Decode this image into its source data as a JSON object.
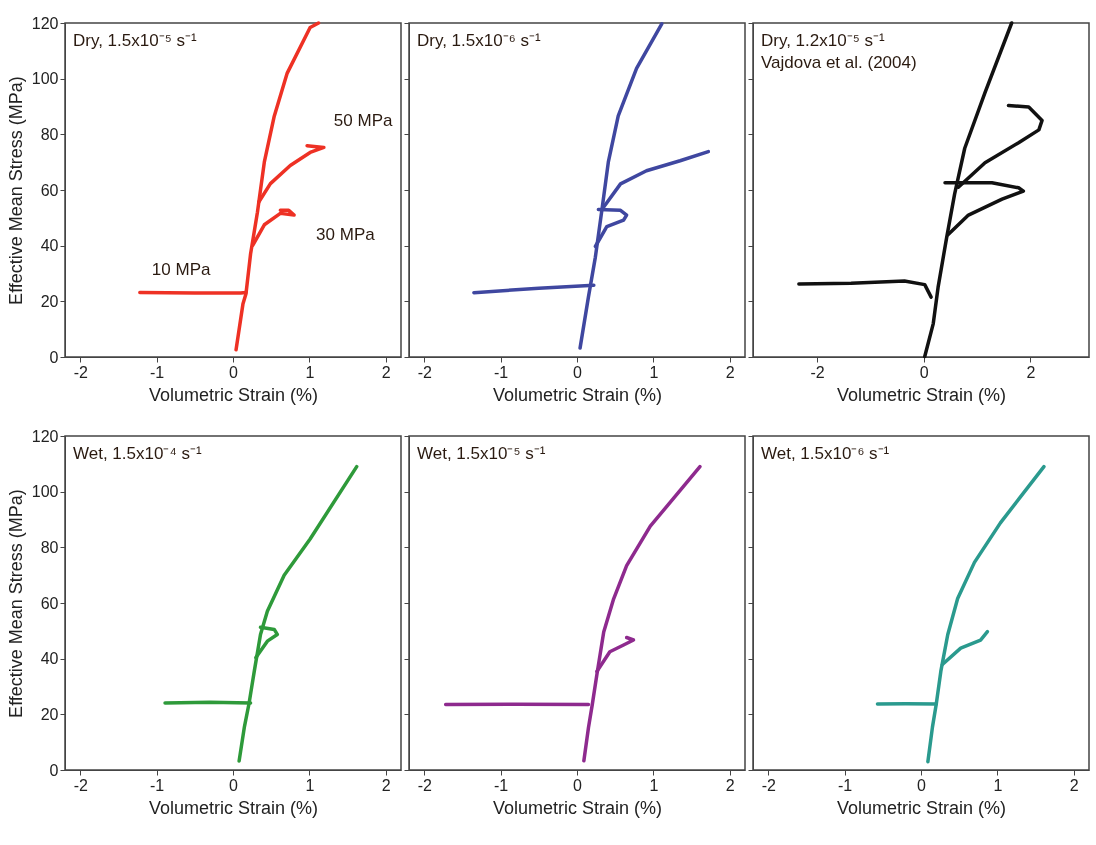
{
  "chart_data": [
    {
      "type": "line",
      "title": "Dry, 1.5x10⁻⁵ s⁻¹",
      "xlabel": "Volumetric Strain (%)",
      "ylabel": "Effective Mean Stress (MPa)",
      "xlim": [
        -2.2,
        2.2
      ],
      "ylim": [
        0,
        120
      ],
      "xticks": [
        -2,
        -1,
        0,
        1,
        2
      ],
      "yticks": [
        0,
        20,
        40,
        60,
        80,
        100,
        120
      ],
      "annotations": [
        {
          "text": "10 MPa",
          "x": -1.22,
          "y": 23.2
        },
        {
          "text": "30 MPa",
          "x": 0.8,
          "y": 51
        },
        {
          "text": "50 MPa",
          "x": 1.19,
          "y": 75.3
        }
      ],
      "series": [
        {
          "color": "#ee3124",
          "x": [
            0.04,
            0.13,
            0.17,
            0.23,
            0.32,
            0.41,
            0.54,
            0.71,
            1.01,
            1.12
          ],
          "values": [
            2.6,
            19,
            22.7,
            37,
            52,
            70,
            86.5,
            102,
            118.4,
            120
          ]
        },
        {
          "color": "#ee3124",
          "x": [
            0.17,
            0.1,
            -0.5,
            -1.22
          ],
          "values": [
            23.2,
            23,
            23,
            23.2
          ]
        },
        {
          "color": "#ee3124",
          "x": [
            0.26,
            0.41,
            0.62,
            0.8,
            0.73,
            0.62
          ],
          "values": [
            40.2,
            47.5,
            51.6,
            51,
            52.7,
            52.7
          ]
        },
        {
          "color": "#ee3124",
          "x": [
            0.34,
            0.49,
            0.75,
            1.01,
            1.19,
            0.97
          ],
          "values": [
            55.8,
            62.3,
            68.8,
            73.5,
            75.3,
            75.9
          ]
        }
      ]
    },
    {
      "type": "line",
      "title": "Dry, 1.5x10⁻⁶ s⁻¹",
      "xlabel": "Volumetric Strain (%)",
      "xlim": [
        -2.2,
        2.2
      ],
      "ylim": [
        0,
        120
      ],
      "xticks": [
        -2,
        -1,
        0,
        1,
        2
      ],
      "yticks": [
        0,
        20,
        40,
        60,
        80,
        100,
        120
      ],
      "tick_labels": "x",
      "series": [
        {
          "color": "#3f47a0",
          "x": [
            0.04,
            0.15,
            0.24,
            0.33,
            0.41,
            0.54,
            0.78,
            1.11
          ],
          "values": [
            3.2,
            21.6,
            35.8,
            53.6,
            70,
            86.6,
            103.7,
            119.7
          ]
        },
        {
          "color": "#3f47a0",
          "x": [
            0.22,
            -0.5,
            -1.35
          ],
          "values": [
            25.8,
            24.7,
            23.1
          ]
        },
        {
          "color": "#3f47a0",
          "x": [
            0.24,
            0.39,
            0.61,
            0.65,
            0.57,
            0.28
          ],
          "values": [
            39.7,
            46.8,
            49.2,
            51,
            52.7,
            53
          ]
        },
        {
          "color": "#3f47a0",
          "x": [
            0.35,
            0.57,
            0.91,
            1.35,
            1.72
          ],
          "values": [
            53.9,
            62.2,
            66.9,
            70.5,
            73.8
          ]
        }
      ]
    },
    {
      "type": "line",
      "title": "Dry, 1.2x10⁻⁵ s⁻¹",
      "subtitle": "Vajdova et al. (2004)",
      "xlabel": "Volumetric Strain (%)",
      "xlim": [
        -3.2,
        3.1
      ],
      "ylim": [
        0,
        120
      ],
      "xticks": [
        -2,
        0,
        2
      ],
      "yticks": [
        0,
        20,
        40,
        60,
        80,
        100,
        120
      ],
      "tick_labels": "x",
      "series": [
        {
          "color": "#111111",
          "x": [
            0.02,
            0.18,
            0.27,
            0.43,
            0.58,
            0.77,
            1.15,
            1.65
          ],
          "values": [
            0.2,
            12,
            25,
            42.8,
            58.5,
            75,
            95,
            120
          ]
        },
        {
          "color": "#111111",
          "x": [
            0.14,
            0.02,
            -0.36,
            -1.36,
            -2.34
          ],
          "values": [
            21.5,
            26,
            27.3,
            26.5,
            26.2
          ]
        },
        {
          "color": "#111111",
          "x": [
            0.46,
            0.84,
            1.47,
            1.87,
            1.78,
            1.28,
            0.84,
            0.4
          ],
          "values": [
            44,
            51,
            56.7,
            59.6,
            60.8,
            62.6,
            62.6,
            62.6
          ]
        },
        {
          "color": "#111111",
          "x": [
            0.65,
            1.15,
            1.78,
            2.16,
            2.22,
            1.97,
            1.59
          ],
          "values": [
            61,
            69.8,
            77,
            81.6,
            85,
            89.8,
            90.4
          ]
        }
      ]
    },
    {
      "type": "line",
      "title": "Wet, 1.5x10⁻⁴ s⁻¹",
      "xlabel": "Volumetric Strain (%)",
      "ylabel": "Effective Mean Stress (MPa)",
      "xlim": [
        -2.2,
        2.2
      ],
      "ylim": [
        0,
        120
      ],
      "xticks": [
        -2,
        -1,
        0,
        1,
        2
      ],
      "yticks": [
        0,
        20,
        40,
        60,
        80,
        100,
        120
      ],
      "series": [
        {
          "color": "#2e9a3a",
          "x": [
            0.08,
            0.15,
            0.21,
            0.28,
            0.36,
            0.45,
            0.67,
            1.01,
            1.62
          ],
          "values": [
            3.2,
            15.6,
            23.9,
            35.7,
            48.7,
            57,
            70,
            83,
            109
          ]
        },
        {
          "color": "#2e9a3a",
          "x": [
            0.23,
            -0.3,
            -0.89
          ],
          "values": [
            24.1,
            24.3,
            24.1
          ]
        },
        {
          "color": "#2e9a3a",
          "x": [
            0.3,
            0.45,
            0.58,
            0.54,
            0.36
          ],
          "values": [
            40.4,
            46.3,
            48.7,
            50.5,
            51.3
          ]
        }
      ]
    },
    {
      "type": "line",
      "title": "Wet, 1.5x10⁻⁵ s⁻¹",
      "xlabel": "Volumetric Strain (%)",
      "xlim": [
        -2.2,
        2.2
      ],
      "ylim": [
        0,
        120
      ],
      "xticks": [
        -2,
        -1,
        0,
        1,
        2
      ],
      "yticks": [
        0,
        20,
        40,
        60,
        80,
        100,
        120
      ],
      "tick_labels": "x",
      "series": [
        {
          "color": "#8e2a8e",
          "x": [
            0.09,
            0.15,
            0.2,
            0.26,
            0.35,
            0.48,
            0.65,
            0.96,
            1.61
          ],
          "values": [
            3.3,
            15.2,
            23.5,
            34.2,
            49.6,
            61.5,
            73.4,
            87.6,
            109
          ]
        },
        {
          "color": "#8e2a8e",
          "x": [
            0.15,
            -0.8,
            -1.72
          ],
          "values": [
            23.5,
            23.6,
            23.5
          ]
        },
        {
          "color": "#8e2a8e",
          "x": [
            0.26,
            0.43,
            0.61,
            0.74,
            0.65
          ],
          "values": [
            35.4,
            42.5,
            44.9,
            46.7,
            47.6
          ]
        }
      ]
    },
    {
      "type": "line",
      "title": "Wet, 1.5x10⁻⁶ s⁻¹",
      "xlabel": "Volumetric Strain (%)",
      "xlim": [
        -2.2,
        2.2
      ],
      "ylim": [
        0,
        120
      ],
      "xticks": [
        -2,
        -1,
        0,
        1,
        2
      ],
      "yticks": [
        0,
        20,
        40,
        60,
        80,
        100,
        120
      ],
      "tick_labels": "x",
      "series": [
        {
          "color": "#2a9a8e",
          "x": [
            0.09,
            0.15,
            0.2,
            0.26,
            0.35,
            0.48,
            0.7,
            1.04,
            1.61
          ],
          "values": [
            3,
            15.4,
            23.7,
            35.5,
            48.6,
            61.6,
            74.6,
            88.8,
            109
          ]
        },
        {
          "color": "#2a9a8e",
          "x": [
            0.2,
            -0.2,
            -0.57
          ],
          "values": [
            23.7,
            23.8,
            23.7
          ]
        },
        {
          "color": "#2a9a8e",
          "x": [
            0.28,
            0.52,
            0.78,
            0.87
          ],
          "values": [
            37.9,
            43.8,
            46.7,
            49.7
          ]
        }
      ]
    }
  ]
}
